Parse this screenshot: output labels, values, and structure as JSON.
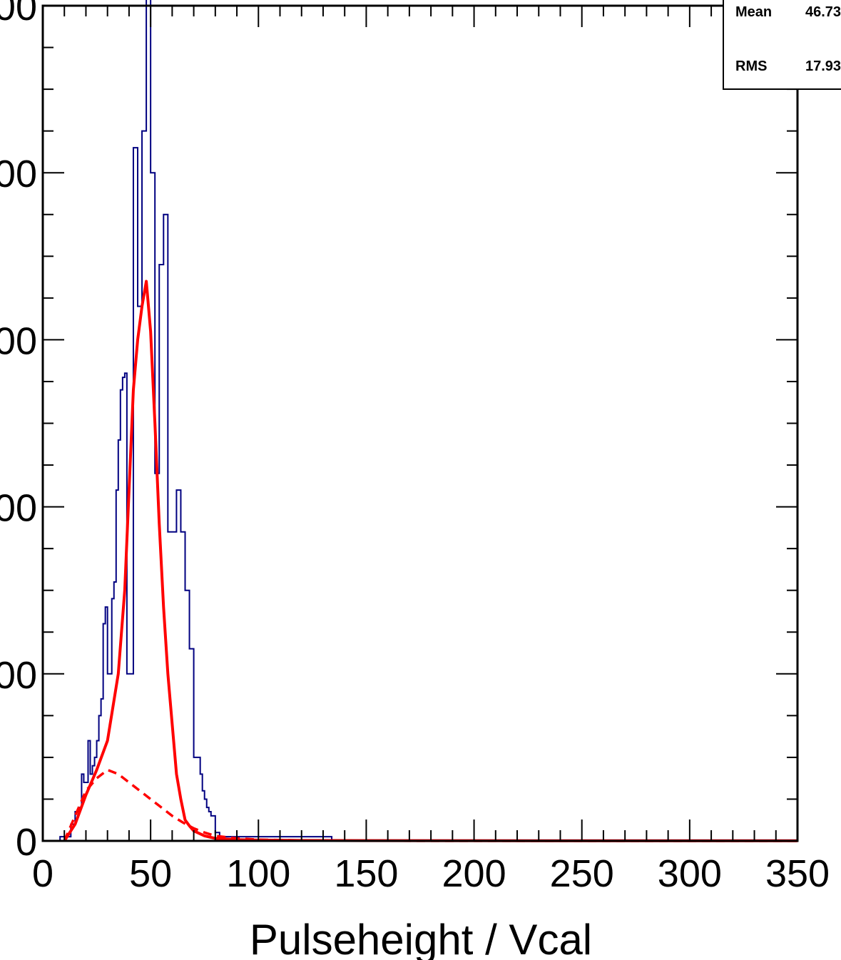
{
  "stats": {
    "mean_label": "Mean",
    "mean_value": "46.73",
    "rms_label": "RMS",
    "rms_value": "17.93"
  },
  "colors": {
    "histogram": "#000080",
    "fit": "#ff0000",
    "axis": "#000000"
  },
  "chart_data": {
    "type": "line",
    "title": "",
    "xlabel": "Pulseheight / Vcal",
    "ylabel": "",
    "xlim": [
      0,
      350
    ],
    "ylim": [
      0,
      1000
    ],
    "x_ticks": [
      0,
      50,
      100,
      150,
      200,
      250,
      300,
      350
    ],
    "x_tick_labels": [
      "0",
      "50",
      "100",
      "150",
      "200",
      "250",
      "300",
      "350"
    ],
    "y_ticks": [
      0,
      200,
      400,
      600,
      800,
      1000
    ],
    "y_tick_labels": [
      "0",
      "00",
      "00",
      "00",
      "00",
      "00"
    ],
    "grid": false,
    "legend": "none",
    "histogram": {
      "bin_width": 1,
      "x_start": 0,
      "values": [
        0,
        0,
        0,
        0,
        0,
        0,
        0,
        0,
        5,
        5,
        5,
        5,
        5,
        20,
        20,
        35,
        35,
        40,
        80,
        70,
        70,
        120,
        80,
        90,
        100,
        120,
        150,
        170,
        260,
        280,
        200,
        200,
        290,
        310,
        420,
        480,
        540,
        555,
        560,
        200,
        200,
        200,
        830,
        830,
        640,
        640,
        850,
        850,
        1010,
        1010,
        800,
        800,
        440,
        440,
        690,
        690,
        750,
        750,
        370,
        370,
        370,
        370,
        420,
        420,
        370,
        370,
        300,
        300,
        230,
        230,
        100,
        100,
        100,
        80,
        60,
        50,
        40,
        35,
        30,
        30,
        10,
        10,
        5,
        5,
        5,
        5,
        5,
        5,
        5,
        5,
        5,
        5,
        5,
        5,
        5,
        5,
        5,
        5,
        5,
        5,
        5,
        5,
        5,
        5,
        5,
        5,
        5,
        5,
        5,
        5,
        5,
        5,
        5,
        5,
        5,
        5,
        5,
        5,
        5,
        5,
        5,
        5,
        5,
        5,
        5,
        5,
        5,
        5,
        5,
        5,
        5,
        5,
        5,
        5,
        0,
        0
      ],
      "tail_value_to_xmax": 1
    },
    "series": [
      {
        "style": "solid",
        "x": [
          10,
          15,
          20,
          25,
          30,
          35,
          38,
          40,
          42,
          44,
          46,
          48,
          50,
          52,
          54,
          56,
          58,
          60,
          62,
          64,
          66,
          68,
          70,
          75,
          80,
          90,
          100,
          120,
          150,
          200,
          250,
          300,
          350
        ],
        "y": [
          0,
          20,
          55,
          85,
          120,
          200,
          300,
          420,
          540,
          600,
          640,
          670,
          610,
          500,
          380,
          280,
          200,
          140,
          80,
          50,
          25,
          18,
          12,
          6,
          3,
          1.5,
          1,
          0.5,
          0.3,
          0.2,
          0.1,
          0.1,
          0.1
        ]
      },
      {
        "style": "dashed",
        "x": [
          10,
          15,
          20,
          25,
          30,
          35,
          40,
          45,
          50,
          55,
          60,
          65,
          70,
          75,
          80,
          90,
          100,
          120,
          150,
          200,
          250,
          300,
          350
        ],
        "y": [
          0,
          30,
          60,
          75,
          85,
          80,
          70,
          60,
          50,
          40,
          30,
          22,
          15,
          10,
          6,
          3,
          1.5,
          0.5,
          0.2,
          0.1,
          0.05,
          0.05,
          0.05
        ]
      }
    ]
  }
}
